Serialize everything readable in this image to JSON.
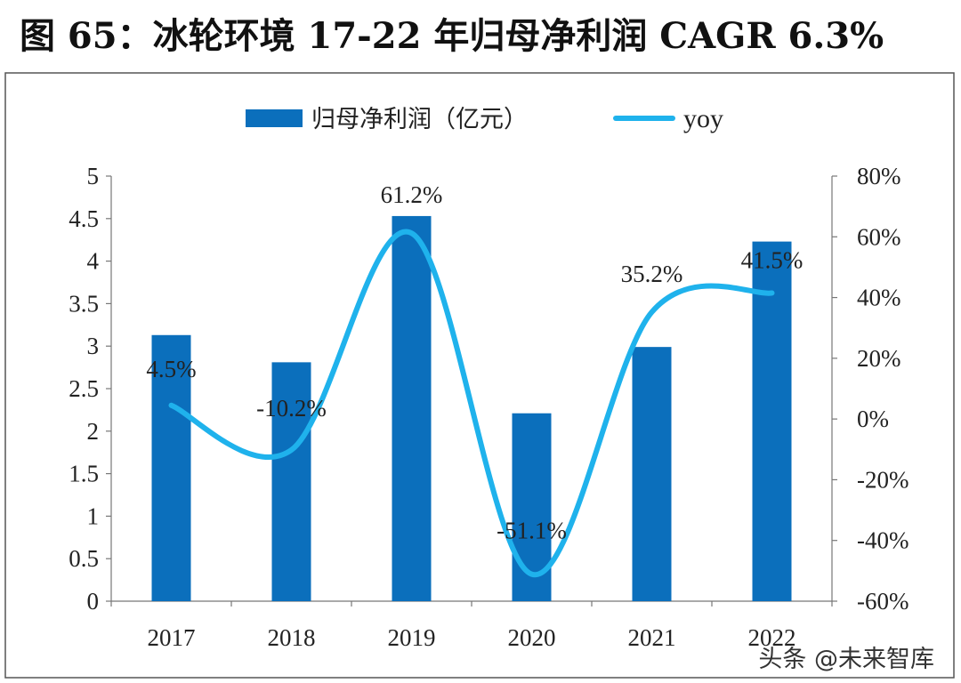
{
  "figure": {
    "title": "图 65：冰轮环境 17-22 年归母净利润 CAGR 6.3%",
    "watermark": "头条 @未来智库"
  },
  "chart_data": {
    "type": "bar+line",
    "categories": [
      "2017",
      "2018",
      "2019",
      "2020",
      "2021",
      "2022"
    ],
    "series": [
      {
        "name": "归母净利润（亿元）",
        "type": "bar",
        "axis": "left",
        "values": [
          3.13,
          2.81,
          4.53,
          2.21,
          2.99,
          4.23
        ],
        "color": "#0b6fbc"
      },
      {
        "name": "yoy",
        "type": "line",
        "axis": "right",
        "smooth": true,
        "values": [
          4.5,
          -10.2,
          61.2,
          -51.1,
          35.2,
          41.5
        ],
        "labels": [
          "4.5%",
          "-10.2%",
          "61.2%",
          "-51.1%",
          "35.2%",
          "41.5%"
        ],
        "color": "#1fb2ec"
      }
    ],
    "y_left": {
      "min": 0,
      "max": 5,
      "ticks": [
        "0",
        "0.5",
        "1",
        "1.5",
        "2",
        "2.5",
        "3",
        "3.5",
        "4",
        "4.5",
        "5"
      ]
    },
    "y_right": {
      "min": -60,
      "max": 80,
      "ticks": [
        "-60%",
        "-40%",
        "-20%",
        "0%",
        "20%",
        "40%",
        "60%",
        "80%"
      ]
    },
    "legend": {
      "position": "top",
      "items": [
        "归母净利润（亿元）",
        "yoy"
      ]
    },
    "grid": false
  }
}
